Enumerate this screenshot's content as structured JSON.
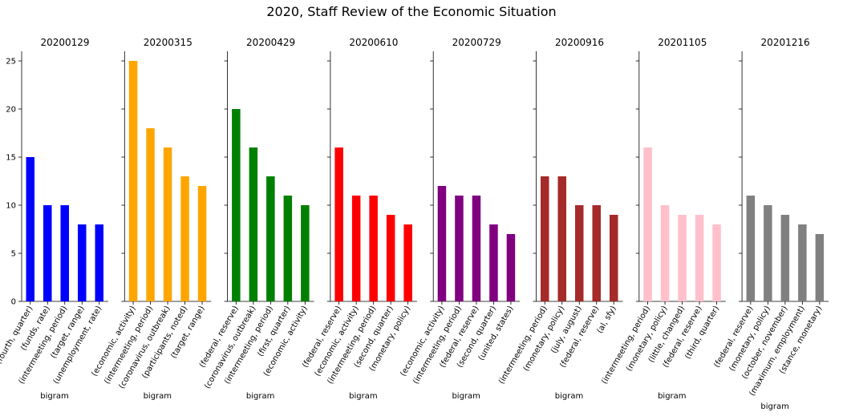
{
  "figure": {
    "title": "2020, Staff Review of the Economic Situation"
  },
  "chart_data": [
    {
      "type": "bar",
      "title": "20200129",
      "xlabel": "bigram",
      "ylabel": "",
      "ylim": [
        0,
        26
      ],
      "yticks": [
        0,
        5,
        10,
        15,
        20,
        25
      ],
      "color": "#0000ff",
      "categories": [
        "(fourth, quarter)",
        "(funds, rate)",
        "(intermeeting, period)",
        "(target, range)",
        "(unemployment, rate)"
      ],
      "values": [
        15,
        10,
        10,
        8,
        8
      ]
    },
    {
      "type": "bar",
      "title": "20200315",
      "xlabel": "bigram",
      "ylabel": "",
      "ylim": [
        0,
        26
      ],
      "yticks": [
        0,
        5,
        10,
        15,
        20,
        25
      ],
      "color": "#ffa500",
      "categories": [
        "(economic, activity)",
        "(intermeeting, period)",
        "(coronavirus, outbreak)",
        "(participants, noted)",
        "(target, range)"
      ],
      "values": [
        25,
        18,
        16,
        13,
        12
      ]
    },
    {
      "type": "bar",
      "title": "20200429",
      "xlabel": "bigram",
      "ylabel": "",
      "ylim": [
        0,
        26
      ],
      "yticks": [
        0,
        5,
        10,
        15,
        20,
        25
      ],
      "color": "#008000",
      "categories": [
        "(federal, reserve)",
        "(coronavirus, outbreak)",
        "(intermeeting, period)",
        "(first, quarter)",
        "(economic, activity)"
      ],
      "values": [
        20,
        16,
        13,
        11,
        10
      ]
    },
    {
      "type": "bar",
      "title": "20200610",
      "xlabel": "bigram",
      "ylabel": "",
      "ylim": [
        0,
        26
      ],
      "yticks": [
        0,
        5,
        10,
        15,
        20,
        25
      ],
      "color": "#ff0000",
      "categories": [
        "(federal, reserve)",
        "(economic, activity)",
        "(intermeeting, period)",
        "(second, quarter)",
        "(monetary, policy)"
      ],
      "values": [
        16,
        11,
        11,
        9,
        8
      ]
    },
    {
      "type": "bar",
      "title": "20200729",
      "xlabel": "bigram",
      "ylabel": "",
      "ylim": [
        0,
        26
      ],
      "yticks": [
        0,
        5,
        10,
        15,
        20,
        25
      ],
      "color": "#800080",
      "categories": [
        "(economic, activity)",
        "(intermeeting, period)",
        "(federal, reserve)",
        "(second, quarter)",
        "(united, states)"
      ],
      "values": [
        12,
        11,
        11,
        8,
        7
      ]
    },
    {
      "type": "bar",
      "title": "20200916",
      "xlabel": "bigram",
      "ylabel": "",
      "ylim": [
        0,
        26
      ],
      "yticks": [
        0,
        5,
        10,
        15,
        20,
        25
      ],
      "color": "#a52a2a",
      "categories": [
        "(intermeeting, period)",
        "(monetary, policy)",
        "(july, august)",
        "(federal, reserve)",
        "(al, sfy)"
      ],
      "values": [
        13,
        13,
        10,
        10,
        9
      ]
    },
    {
      "type": "bar",
      "title": "20201105",
      "xlabel": "bigram",
      "ylabel": "",
      "ylim": [
        0,
        26
      ],
      "yticks": [
        0,
        5,
        10,
        15,
        20,
        25
      ],
      "color": "#ffc0cb",
      "categories": [
        "(intermeeting, period)",
        "(monetary, policy)",
        "(little, changed)",
        "(federal, reserve)",
        "(third, quarter)"
      ],
      "values": [
        16,
        10,
        9,
        9,
        8
      ]
    },
    {
      "type": "bar",
      "title": "20201216",
      "xlabel": "bigram",
      "ylabel": "",
      "ylim": [
        0,
        26
      ],
      "yticks": [
        0,
        5,
        10,
        15,
        20,
        25
      ],
      "color": "#808080",
      "categories": [
        "(federal, reserve)",
        "(monetary, policy)",
        "(october, november)",
        "(maximum, employment)",
        "(stance, monetary)"
      ],
      "values": [
        11,
        10,
        9,
        8,
        7
      ]
    }
  ]
}
